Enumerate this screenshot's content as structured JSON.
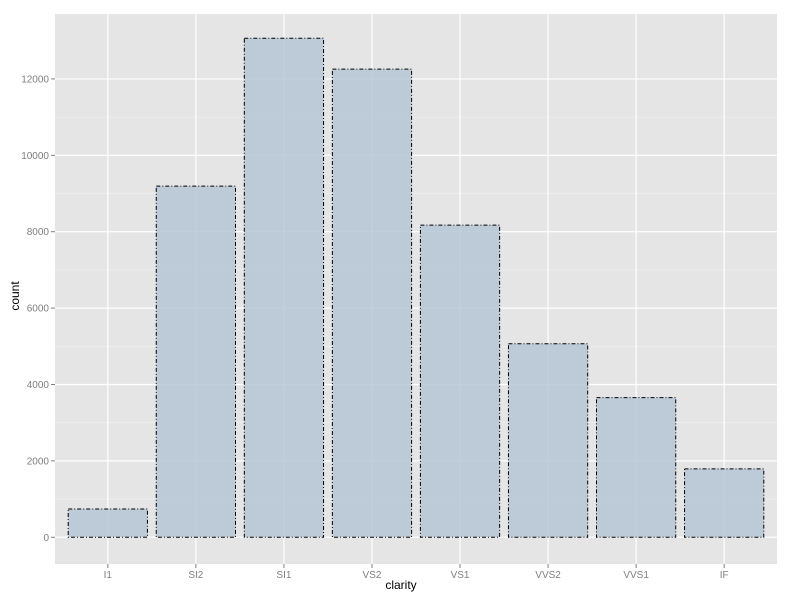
{
  "chart_data": {
    "type": "bar",
    "categories": [
      "I1",
      "SI2",
      "SI1",
      "VS2",
      "VS1",
      "VVS2",
      "VVS1",
      "IF"
    ],
    "values": [
      741,
      9194,
      13065,
      12258,
      8171,
      5066,
      3655,
      1790
    ],
    "xlabel": "clarity",
    "ylabel": "count",
    "ylim": [
      -700,
      13700
    ],
    "yticks": [
      0,
      2000,
      4000,
      6000,
      8000,
      10000,
      12000
    ],
    "ytick_labels": [
      "0",
      "2000",
      "4000",
      "6000",
      "8000",
      "10000",
      "12000"
    ],
    "grid": true,
    "legend": "none",
    "colors": {
      "panel_background": "#e5e5e5",
      "grid_major": "#ffffff",
      "grid_minor": "#f2f2f2",
      "bar_fill": "#b6c7d6",
      "bar_outline": "#000000",
      "tick_label": "#7f7f7f",
      "axis_title": "#000000"
    }
  }
}
